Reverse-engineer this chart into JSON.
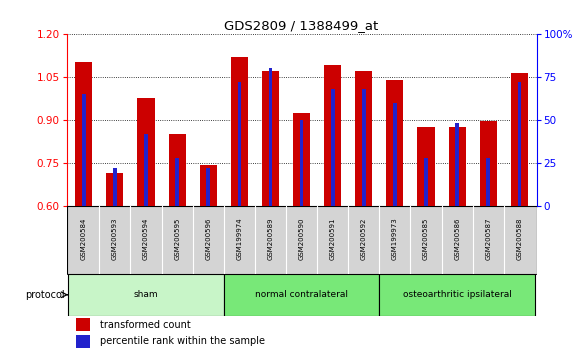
{
  "title": "GDS2809 / 1388499_at",
  "samples": [
    "GSM200584",
    "GSM200593",
    "GSM200594",
    "GSM200595",
    "GSM200596",
    "GSM199974",
    "GSM200589",
    "GSM200590",
    "GSM200591",
    "GSM200592",
    "GSM199973",
    "GSM200585",
    "GSM200586",
    "GSM200587",
    "GSM200588"
  ],
  "red_values": [
    1.1,
    0.715,
    0.975,
    0.853,
    0.745,
    1.12,
    1.07,
    0.925,
    1.09,
    1.07,
    1.04,
    0.875,
    0.875,
    0.895,
    1.065
  ],
  "blue_values_pct": [
    65,
    22,
    42,
    28,
    22,
    72,
    80,
    50,
    68,
    68,
    60,
    28,
    48,
    28,
    72
  ],
  "ylim_left": [
    0.6,
    1.2
  ],
  "ylim_right": [
    0,
    100
  ],
  "yticks_left": [
    0.6,
    0.75,
    0.9,
    1.05,
    1.2
  ],
  "yticks_right": [
    0,
    25,
    50,
    75,
    100
  ],
  "ytick_labels_right": [
    "0",
    "25",
    "50",
    "75",
    "100%"
  ],
  "groups": [
    {
      "label": "sham",
      "start": 0,
      "end": 5,
      "color": "#c8f5c8"
    },
    {
      "label": "normal contralateral",
      "start": 5,
      "end": 10,
      "color": "#78e878"
    },
    {
      "label": "osteoarthritic ipsilateral",
      "start": 10,
      "end": 15,
      "color": "#78e878"
    }
  ],
  "protocol_label": "protocol",
  "red_bar_width": 0.55,
  "blue_bar_width": 0.12,
  "red_color": "#cc0000",
  "blue_color": "#2222cc",
  "background_color": "#ffffff",
  "sample_box_color": "#d4d4d4",
  "legend_red": "transformed count",
  "legend_blue": "percentile rank within the sample"
}
